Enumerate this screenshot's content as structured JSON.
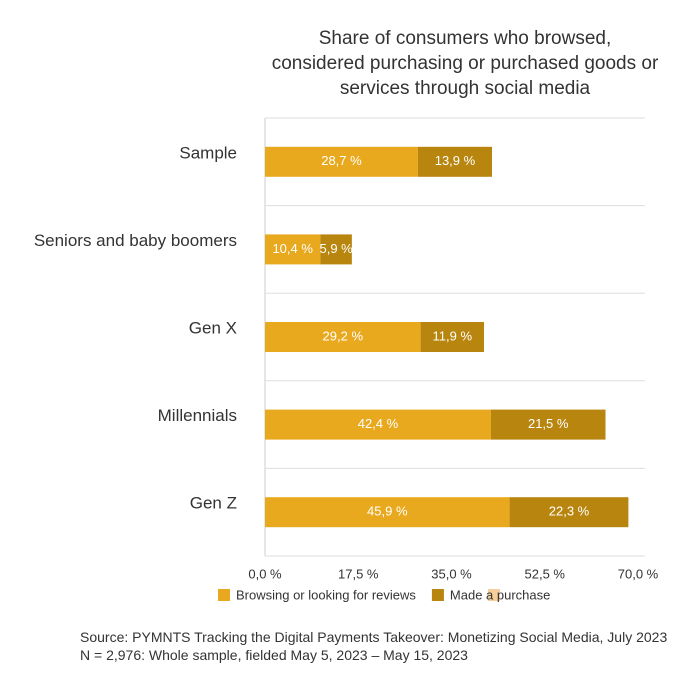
{
  "chart_data": {
    "type": "stacked_barh",
    "title": "Share of consumers who browsed, considered purchasing or purchased goods or services through social media",
    "categories": [
      "Sample",
      "Seniors and baby boomers",
      "Gen X",
      "Millennials",
      "Gen Z"
    ],
    "series": [
      {
        "name": "Browsing or looking for reviews",
        "color": "#e9a91f",
        "values": [
          28.7,
          10.4,
          29.2,
          42.4,
          45.9
        ],
        "value_labels": [
          "28,7 %",
          "10,4 %",
          "29,2 %",
          "42,4 %",
          "45,9 %"
        ]
      },
      {
        "name": "Made a purchase",
        "color": "#b8860f",
        "values": [
          13.9,
          5.9,
          11.9,
          21.5,
          22.3
        ],
        "value_labels": [
          "13,9 %",
          "5,9 %",
          "11,9 %",
          "21,5 %",
          "22,3 %"
        ]
      }
    ],
    "xlim": [
      0,
      70
    ],
    "xticks": [
      {
        "value": 0,
        "label": "0,0 %"
      },
      {
        "value": 17.5,
        "label": "17,5 %"
      },
      {
        "value": 35,
        "label": "35,0 %"
      },
      {
        "value": 52.5,
        "label": "52,5 %"
      },
      {
        "value": 70,
        "label": "70,0 %"
      }
    ],
    "source": "Source: PYMNTS Tracking the Digital Payments Takeover: Monetizing Social Media, July 2023 N = 2,976: Whole sample, fielded May 5, 2023 – May 15, 2023"
  }
}
